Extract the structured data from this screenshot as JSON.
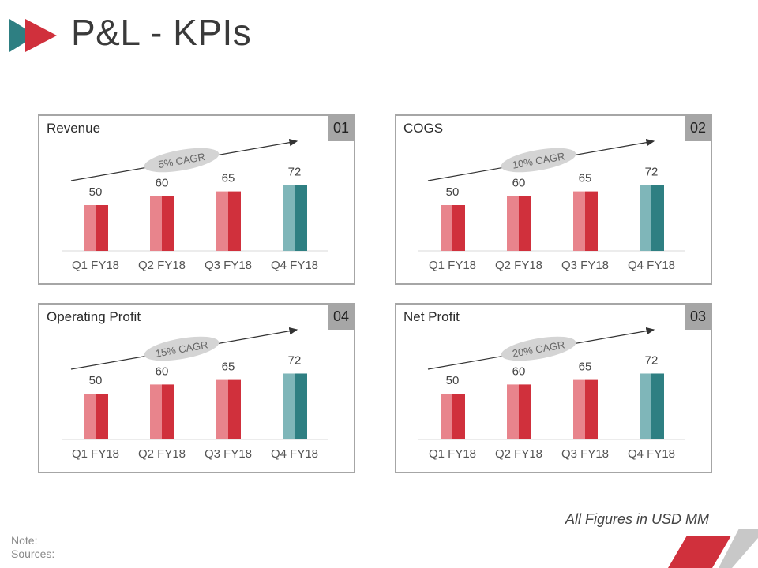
{
  "header": {
    "title": "P&L - KPIs"
  },
  "colors": {
    "red_light": "#e8848c",
    "red_dark": "#d0303c",
    "teal_light": "#7fb6b9",
    "teal_dark": "#2e7f82",
    "accent_red": "#d0303c",
    "accent_teal": "#2e7f82"
  },
  "panels": [
    {
      "title": "Revenue",
      "number": "01",
      "cagr": "5% CAGR"
    },
    {
      "title": "COGS",
      "number": "02",
      "cagr": "10% CAGR"
    },
    {
      "title": "Operating Profit",
      "number": "04",
      "cagr": "15% CAGR"
    },
    {
      "title": "Net Profit",
      "number": "03",
      "cagr": "20% CAGR"
    }
  ],
  "chart_data": [
    {
      "type": "bar",
      "title": "Revenue",
      "categories": [
        "Q1 FY18",
        "Q2 FY18",
        "Q3 FY18",
        "Q4 FY18"
      ],
      "values": [
        50,
        60,
        65,
        72
      ],
      "annotation": "5% CAGR",
      "ylim": [
        0,
        100
      ]
    },
    {
      "type": "bar",
      "title": "COGS",
      "categories": [
        "Q1 FY18",
        "Q2 FY18",
        "Q3 FY18",
        "Q4 FY18"
      ],
      "values": [
        50,
        60,
        65,
        72
      ],
      "annotation": "10% CAGR",
      "ylim": [
        0,
        100
      ]
    },
    {
      "type": "bar",
      "title": "Operating Profit",
      "categories": [
        "Q1 FY18",
        "Q2 FY18",
        "Q3 FY18",
        "Q4 FY18"
      ],
      "values": [
        50,
        60,
        65,
        72
      ],
      "annotation": "15% CAGR",
      "ylim": [
        0,
        100
      ]
    },
    {
      "type": "bar",
      "title": "Net Profit",
      "categories": [
        "Q1 FY18",
        "Q2 FY18",
        "Q3 FY18",
        "Q4 FY18"
      ],
      "values": [
        50,
        60,
        65,
        72
      ],
      "annotation": "20% CAGR",
      "ylim": [
        0,
        100
      ]
    }
  ],
  "footer": {
    "units_note": "All Figures in USD MM",
    "note_label": "Note:",
    "sources_label": "Sources:"
  }
}
